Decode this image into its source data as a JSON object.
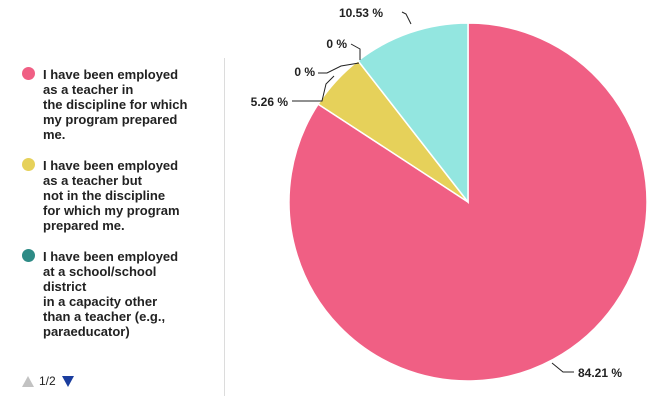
{
  "chart_data": {
    "type": "pie",
    "categories": [
      "I have been employed as a teacher in the discipline for which my program prepared me.",
      "I have been employed as a teacher but not in the discipline for which my program prepared me.",
      "I have been employed at a school/school district in a capacity other than a teacher (e.g., paraeducator)",
      "",
      ""
    ],
    "values": [
      84.21,
      5.26,
      0,
      0,
      10.53
    ],
    "value_labels": [
      "84.21 %",
      "5.26 %",
      "0 %",
      "0 %",
      "10.53 %"
    ],
    "colors": [
      "#f05f84",
      "#e6d15a",
      "#2e8b86",
      "#7a7a7a",
      "#93e6e0"
    ],
    "legend_position": "left",
    "legend_items": [
      {
        "label": "I have been employed\nas a teacher in\nthe discipline for which\nmy program prepared\nme.",
        "color": "#f05f84"
      },
      {
        "label": "I have been employed\nas a teacher but\nnot in the discipline\nfor which my program\nprepared me.",
        "color": "#e6d15a"
      },
      {
        "label": "I have been employed\nat a school/school\ndistrict\nin a capacity other\nthan a teacher (e.g.,\nparaeducator)",
        "color": "#2e8b86"
      }
    ],
    "legend_page": "1/2"
  }
}
